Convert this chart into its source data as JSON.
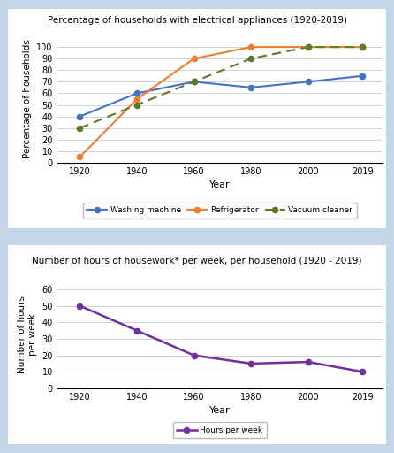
{
  "years": [
    1920,
    1940,
    1960,
    1980,
    2000,
    2019
  ],
  "washing_machine": [
    40,
    60,
    70,
    65,
    70,
    75
  ],
  "refrigerator": [
    5,
    55,
    90,
    100,
    100,
    100
  ],
  "vacuum_cleaner": [
    30,
    50,
    70,
    90,
    100,
    100
  ],
  "hours_per_week": [
    50,
    35,
    20,
    15,
    16,
    10
  ],
  "chart1_title": "Percentage of households with electrical appliances (1920-2019)",
  "chart2_title": "Number of hours of housework* per week, per household (1920 - 2019)",
  "xlabel": "Year",
  "ylabel1": "Percentage of households",
  "ylabel2": "Number of hours\nper week",
  "ylim1": [
    0,
    110
  ],
  "ylim2": [
    0,
    65
  ],
  "yticks1": [
    0,
    10,
    20,
    30,
    40,
    50,
    60,
    70,
    80,
    90,
    100
  ],
  "yticks2": [
    0,
    10,
    20,
    30,
    40,
    50,
    60
  ],
  "washing_color": "#4472C4",
  "refrigerator_color": "#ED7D31",
  "vacuum_color": "#5C7A29",
  "hours_color": "#7030A0",
  "bg_color": "#C5D5E8",
  "plot_bg_color": "#FFFFFF",
  "panel_bg": "#FFFFFF",
  "label_washing": "Washing machine",
  "label_refrigerator": "Refrigerator",
  "label_vacuum": "Vacuum cleaner",
  "label_hours": "Hours per week"
}
